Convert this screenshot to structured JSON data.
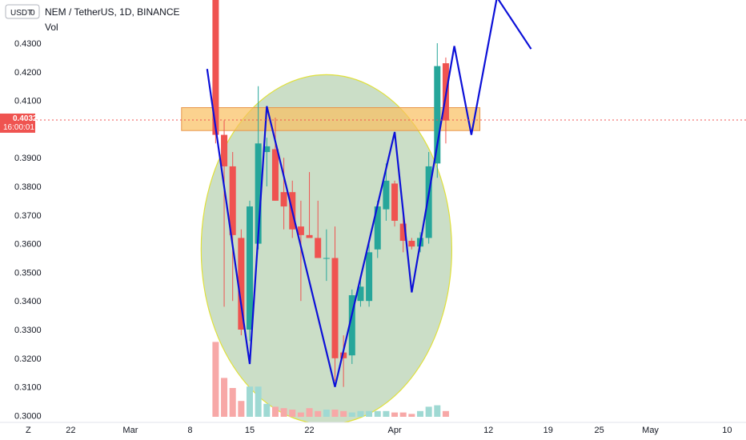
{
  "header": {
    "currency_button": "USDT",
    "title": "NEM / TetherUS, 1D, BINANCE",
    "indicator_label": "Vol",
    "zone_marker": "Z"
  },
  "price_badge": {
    "price": "0.4032",
    "countdown": "16:00:01"
  },
  "colors": {
    "up": "#26a69a",
    "down": "#ef5350",
    "up_volume": "#9fd9d3",
    "down_volume": "#f7a8a7",
    "pattern_line": "#0c10d8",
    "zone_fill": "#f9bf5f",
    "zone_border": "#e8964a",
    "ellipse_fill": "#b9d3b4",
    "ellipse_border": "#e0e03a",
    "price_line": "#ef5350"
  },
  "chart_data": {
    "type": "candlestick",
    "symbol": "NEM / TetherUS",
    "interval": "1D",
    "exchange": "BINANCE",
    "y_ticks": [
      "0.4300",
      "0.4200",
      "0.4100",
      "0.3900",
      "0.3800",
      "0.3700",
      "0.3600",
      "0.3500",
      "0.3400",
      "0.3300",
      "0.3200",
      "0.3100",
      "0.3000"
    ],
    "x_ticks": [
      {
        "label": "22",
        "date": "2021-02-22"
      },
      {
        "label": "Mar",
        "date": "2021-03-01"
      },
      {
        "label": "8",
        "date": "2021-03-08"
      },
      {
        "label": "15",
        "date": "2021-03-15"
      },
      {
        "label": "22",
        "date": "2021-03-22"
      },
      {
        "label": "Apr",
        "date": "2021-04-01"
      },
      {
        "label": "12",
        "date": "2021-04-12"
      },
      {
        "label": "19",
        "date": "2021-04-19"
      },
      {
        "label": "25",
        "date": "2021-04-25"
      },
      {
        "label": "May",
        "date": "2021-05-01"
      },
      {
        "label": "10",
        "date": "2021-05-10"
      }
    ],
    "current_price": 0.4032,
    "candles": [
      {
        "date": "2021-03-11",
        "open": 0.453,
        "high": 0.46,
        "low": 0.395,
        "close": 0.398,
        "volume": 0.52
      },
      {
        "date": "2021-03-12",
        "open": 0.398,
        "high": 0.403,
        "low": 0.338,
        "close": 0.387,
        "volume": 0.27
      },
      {
        "date": "2021-03-13",
        "open": 0.387,
        "high": 0.392,
        "low": 0.34,
        "close": 0.363,
        "volume": 0.2
      },
      {
        "date": "2021-03-14",
        "open": 0.362,
        "high": 0.365,
        "low": 0.328,
        "close": 0.33,
        "volume": 0.11
      },
      {
        "date": "2021-03-15",
        "open": 0.33,
        "high": 0.375,
        "low": 0.326,
        "close": 0.373,
        "volume": 0.21
      },
      {
        "date": "2021-03-16",
        "open": 0.36,
        "high": 0.415,
        "low": 0.358,
        "close": 0.395,
        "volume": 0.21
      },
      {
        "date": "2021-03-17",
        "open": 0.392,
        "high": 0.397,
        "low": 0.38,
        "close": 0.394,
        "volume": 0.09
      },
      {
        "date": "2021-03-18",
        "open": 0.393,
        "high": 0.404,
        "low": 0.375,
        "close": 0.375,
        "volume": 0.07
      },
      {
        "date": "2021-03-19",
        "open": 0.378,
        "high": 0.39,
        "low": 0.365,
        "close": 0.373,
        "volume": 0.06
      },
      {
        "date": "2021-03-20",
        "open": 0.378,
        "high": 0.382,
        "low": 0.362,
        "close": 0.365,
        "volume": 0.05
      },
      {
        "date": "2021-03-21",
        "open": 0.366,
        "high": 0.375,
        "low": 0.34,
        "close": 0.363,
        "volume": 0.03
      },
      {
        "date": "2021-03-22",
        "open": 0.363,
        "high": 0.385,
        "low": 0.362,
        "close": 0.362,
        "volume": 0.06
      },
      {
        "date": "2021-03-23",
        "open": 0.362,
        "high": 0.375,
        "low": 0.355,
        "close": 0.355,
        "volume": 0.04
      },
      {
        "date": "2021-03-24",
        "open": 0.355,
        "high": 0.365,
        "low": 0.347,
        "close": 0.355,
        "volume": 0.05
      },
      {
        "date": "2021-03-25",
        "open": 0.355,
        "high": 0.366,
        "low": 0.312,
        "close": 0.32,
        "volume": 0.05
      },
      {
        "date": "2021-03-26",
        "open": 0.322,
        "high": 0.328,
        "low": 0.31,
        "close": 0.32,
        "volume": 0.04
      },
      {
        "date": "2021-03-27",
        "open": 0.321,
        "high": 0.344,
        "low": 0.318,
        "close": 0.342,
        "volume": 0.03
      },
      {
        "date": "2021-03-28",
        "open": 0.34,
        "high": 0.348,
        "low": 0.338,
        "close": 0.345,
        "volume": 0.04
      },
      {
        "date": "2021-03-29",
        "open": 0.34,
        "high": 0.36,
        "low": 0.338,
        "close": 0.357,
        "volume": 0.04
      },
      {
        "date": "2021-03-30",
        "open": 0.358,
        "high": 0.375,
        "low": 0.355,
        "close": 0.373,
        "volume": 0.04
      },
      {
        "date": "2021-03-31",
        "open": 0.372,
        "high": 0.388,
        "low": 0.368,
        "close": 0.382,
        "volume": 0.04
      },
      {
        "date": "2021-04-01",
        "open": 0.381,
        "high": 0.382,
        "low": 0.366,
        "close": 0.368,
        "volume": 0.03
      },
      {
        "date": "2021-04-02",
        "open": 0.367,
        "high": 0.37,
        "low": 0.357,
        "close": 0.361,
        "volume": 0.03
      },
      {
        "date": "2021-04-03",
        "open": 0.361,
        "high": 0.362,
        "low": 0.358,
        "close": 0.359,
        "volume": 0.02
      },
      {
        "date": "2021-04-04",
        "open": 0.359,
        "high": 0.364,
        "low": 0.357,
        "close": 0.362,
        "volume": 0.04
      },
      {
        "date": "2021-04-05",
        "open": 0.362,
        "high": 0.392,
        "low": 0.36,
        "close": 0.387,
        "volume": 0.07
      },
      {
        "date": "2021-04-06",
        "open": 0.388,
        "high": 0.43,
        "low": 0.383,
        "close": 0.422,
        "volume": 0.08
      },
      {
        "date": "2021-04-07",
        "open": 0.423,
        "high": 0.425,
        "low": 0.395,
        "close": 0.403,
        "volume": 0.04
      }
    ],
    "drawings": {
      "pattern_line": [
        {
          "date": "2021-03-10",
          "price": 0.421
        },
        {
          "date": "2021-03-15",
          "price": 0.318
        },
        {
          "date": "2021-03-17",
          "price": 0.408
        },
        {
          "date": "2021-03-25",
          "price": 0.31
        },
        {
          "date": "2021-04-01",
          "price": 0.399
        },
        {
          "date": "2021-04-03",
          "price": 0.343
        },
        {
          "date": "2021-04-08",
          "price": 0.429
        },
        {
          "date": "2021-04-10",
          "price": 0.398
        },
        {
          "date": "2021-04-13",
          "price": 0.446
        },
        {
          "date": "2021-04-17",
          "price": 0.428
        }
      ],
      "horizontal_zone": {
        "price_top": 0.4075,
        "price_bottom": 0.3995,
        "start": "2021-03-07",
        "end": "2021-04-11"
      },
      "ellipse": {
        "center_date": "2021-03-24",
        "center_price": 0.358,
        "half_width_days": 14.7,
        "price_half_height": 0.061
      }
    }
  }
}
